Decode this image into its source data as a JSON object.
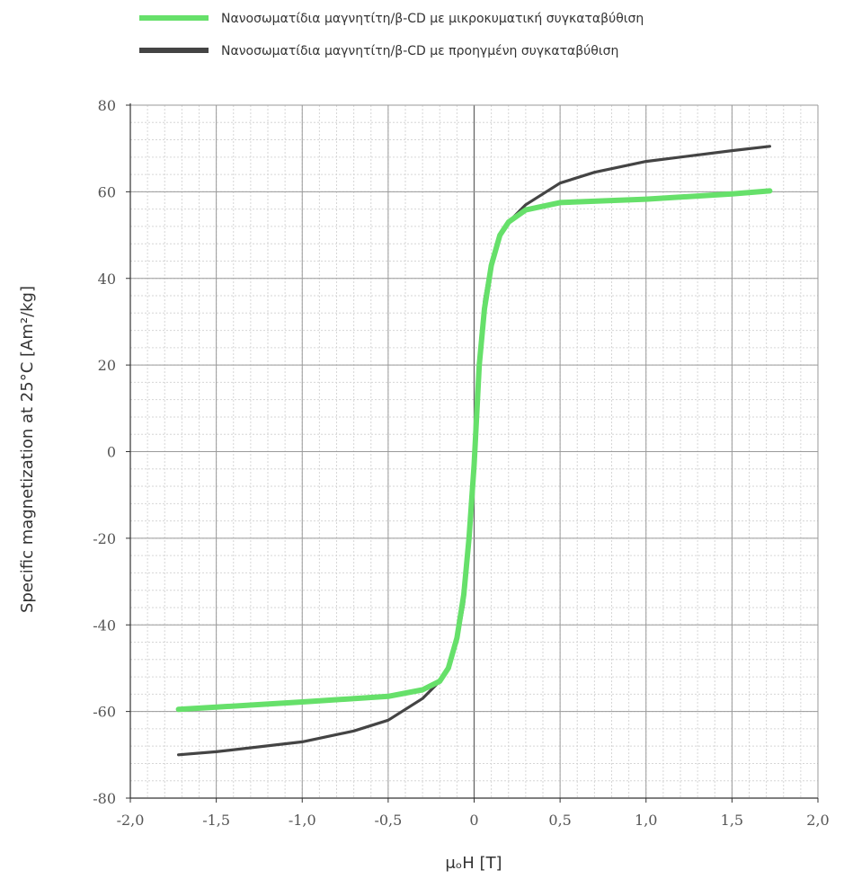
{
  "chart_data": {
    "type": "line",
    "title": "",
    "xlabel": "μₒH [T]",
    "ylabel": "Specific magnetization at 25°C [Am²/kg]",
    "xlim": [
      -2.0,
      2.0
    ],
    "ylim": [
      -80,
      80
    ],
    "x_major_step": 0.5,
    "y_major_step": 20,
    "x_tick_labels": [
      "-2,0",
      "-1,5",
      "-1,0",
      "-0,5",
      "0",
      "0,5",
      "1,0",
      "1,5",
      "2,0"
    ],
    "y_tick_labels": [
      "-80",
      "-60",
      "-40",
      "-20",
      "0",
      "20",
      "40",
      "60",
      "80"
    ],
    "grid": true,
    "minor_grid": true,
    "legend_position": "top",
    "series": [
      {
        "name": "Νανοσωματίδια μαγνητίτη/β-CD με μικροκυματική συγκαταβύθιση",
        "color": "#66e06a",
        "x": [
          -1.72,
          -1.5,
          -1.0,
          -0.5,
          -0.3,
          -0.2,
          -0.15,
          -0.1,
          -0.06,
          -0.03,
          0.0,
          0.03,
          0.06,
          0.1,
          0.15,
          0.2,
          0.3,
          0.5,
          1.0,
          1.5,
          1.72
        ],
        "y": [
          -59.5,
          -59,
          -57.8,
          -56.5,
          -55,
          -53,
          -50,
          -43,
          -33,
          -20,
          -3,
          20,
          33,
          43,
          50,
          53,
          55.8,
          57.5,
          58.3,
          59.5,
          60.2
        ]
      },
      {
        "name": "Νανοσωματίδια μαγνητίτη/β-CD με προηγμένη συγκαταβύθιση",
        "color": "#444444",
        "x": [
          -1.72,
          -1.5,
          -1.0,
          -0.7,
          -0.5,
          -0.3,
          -0.2,
          -0.15,
          -0.1,
          -0.06,
          -0.03,
          0.0,
          0.03,
          0.06,
          0.1,
          0.15,
          0.2,
          0.3,
          0.5,
          0.7,
          1.0,
          1.5,
          1.72
        ],
        "y": [
          -70,
          -69.3,
          -67,
          -64.5,
          -62,
          -57,
          -53,
          -50,
          -44,
          -35,
          -22,
          -5,
          22,
          35,
          44,
          50,
          53,
          57,
          62,
          64.5,
          67,
          69.5,
          70.5
        ]
      }
    ]
  }
}
